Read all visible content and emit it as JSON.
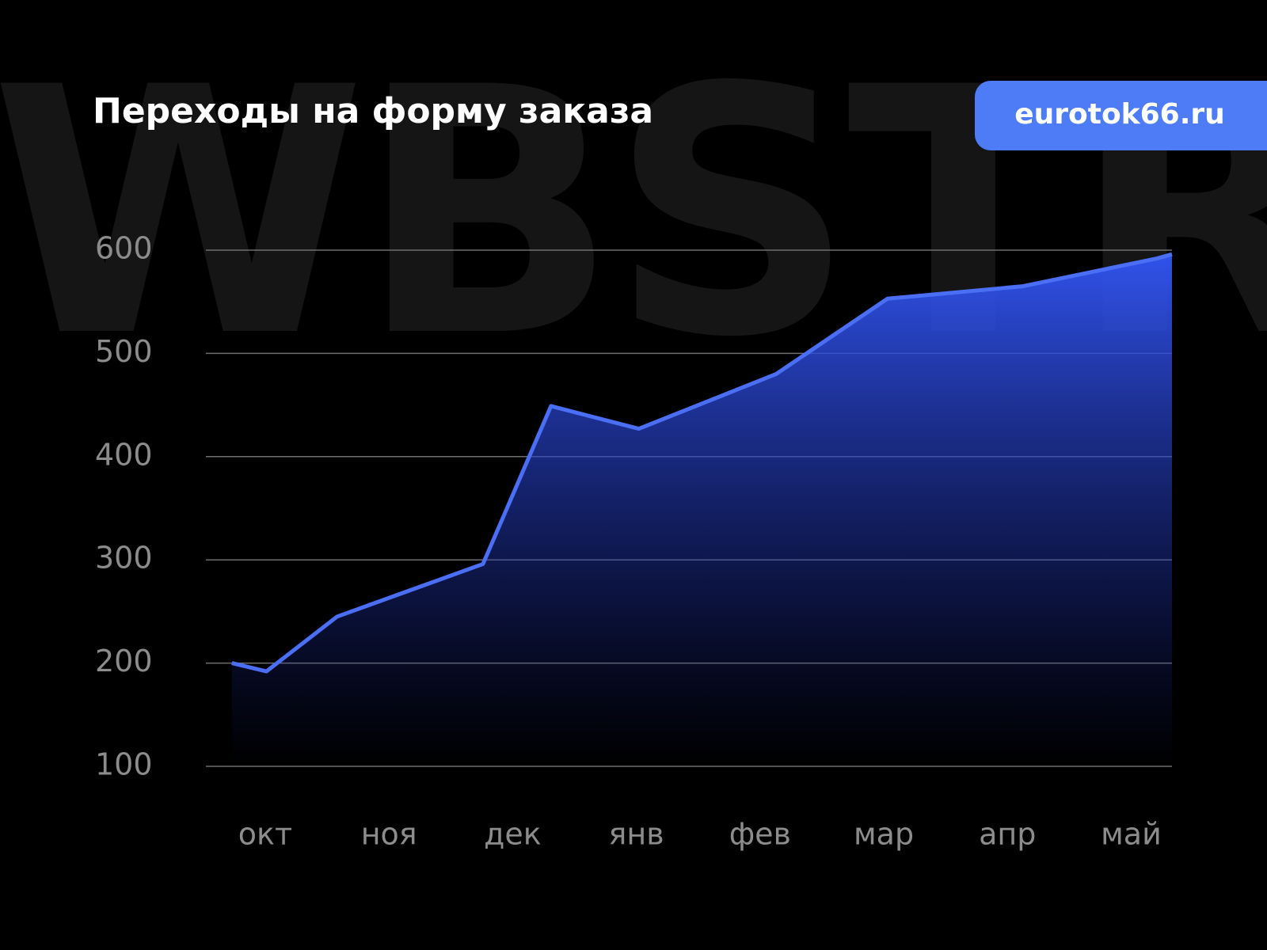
{
  "chart_data": {
    "type": "area",
    "title": "Переходы на форму заказа",
    "badge": "eurotok66.ru",
    "watermark": "WBSTR",
    "x": [
      -0.27,
      0.01,
      0.58,
      1.76,
      2.31,
      3.02,
      4.13,
      5.03,
      6.12,
      7.21,
      7.33
    ],
    "series": [
      {
        "color": "#4a6ff5",
        "values": [
          200,
          192,
          245,
          296,
          449,
          427,
          480,
          553,
          565,
          592,
          596
        ]
      }
    ],
    "xlim": [
      -0.48,
      7.33
    ],
    "xticks": [
      {
        "value": 0,
        "label": "окт"
      },
      {
        "value": 1,
        "label": "ноя"
      },
      {
        "value": 2,
        "label": "дек"
      },
      {
        "value": 3,
        "label": "янв"
      },
      {
        "value": 4,
        "label": "фев"
      },
      {
        "value": 5,
        "label": "мар"
      },
      {
        "value": 6,
        "label": "апр"
      },
      {
        "value": 7,
        "label": "май"
      }
    ],
    "ylim": [
      100,
      600
    ],
    "yticks": [
      100,
      200,
      300,
      400,
      500,
      600
    ],
    "grid": true
  }
}
